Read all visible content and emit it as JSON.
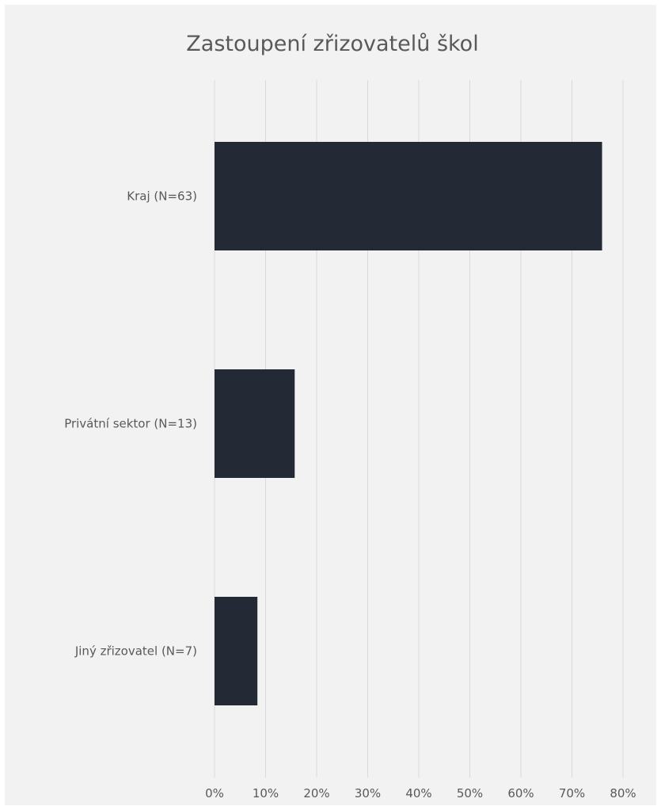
{
  "chart_data": {
    "type": "bar",
    "orientation": "horizontal",
    "title": "Zastoupení zřizovatelů škol",
    "categories": [
      "Kraj (N=63)",
      "Privátní sektor (N=13)",
      "Jiný zřizovatel (N=7)"
    ],
    "values": [
      75.9,
      15.7,
      8.4
    ],
    "unit": "%",
    "xlim": [
      0,
      80
    ],
    "xticks": [
      "0%",
      "10%",
      "20%",
      "30%",
      "40%",
      "50%",
      "60%",
      "70%",
      "80%"
    ],
    "grid": true,
    "legend": "none",
    "bar_color": "#232a35",
    "background_color": "#f2f2f2"
  }
}
